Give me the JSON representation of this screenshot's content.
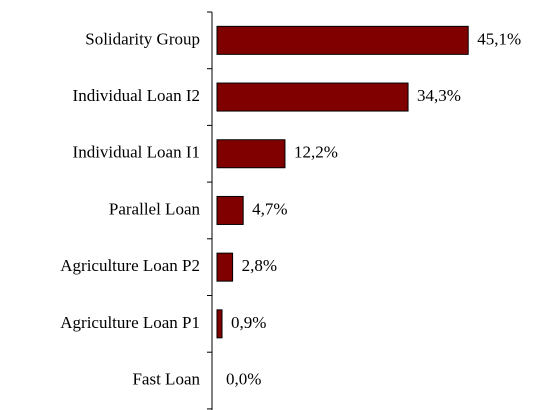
{
  "chart_data": {
    "type": "hbar",
    "categories": [
      "Solidarity Group",
      "Individual Loan I2",
      "Individual Loan I1",
      "Parallel Loan",
      "Agriculture Loan P2",
      "Agriculture Loan P1",
      "Fast Loan"
    ],
    "values": [
      45.1,
      34.3,
      12.2,
      4.7,
      2.8,
      0.9,
      0.0
    ],
    "value_labels": [
      "45,1%",
      "34,3%",
      "12,2%",
      "4,7%",
      "2,8%",
      "0,9%",
      "0,0%"
    ],
    "color": "#800000"
  }
}
